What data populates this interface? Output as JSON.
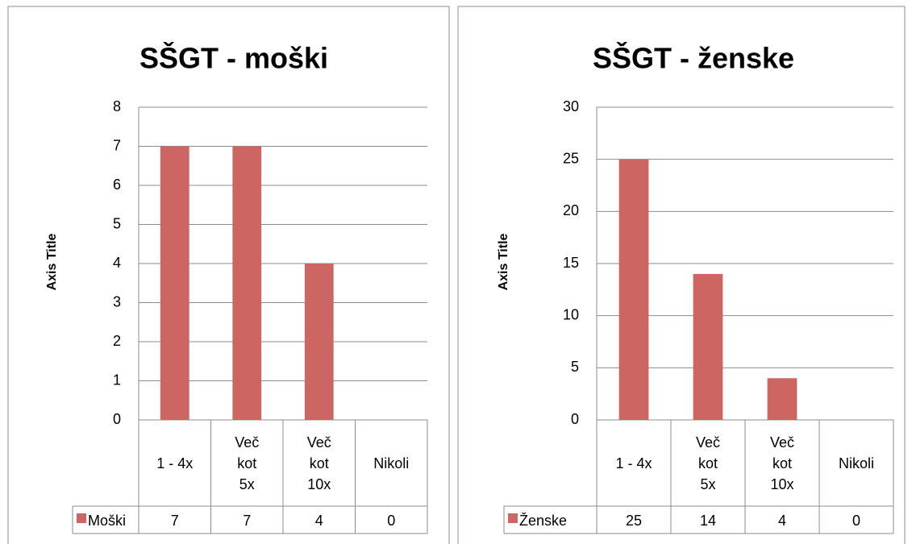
{
  "chart_data": [
    {
      "type": "bar",
      "title": "SŠGT - moški",
      "y_axis_label": "Axis Title",
      "categories": [
        "1 - 4x",
        "Več\nkot\n5x",
        "Več\nkot\n10x",
        "Nikoli"
      ],
      "series": [
        {
          "name": "Moški",
          "color": "#cd6662",
          "values": [
            7,
            7,
            4,
            0
          ]
        }
      ],
      "ylim": [
        0,
        8
      ],
      "yticks": [
        0,
        1,
        2,
        3,
        4,
        5,
        6,
        7,
        8
      ],
      "grid": true,
      "data_table": true
    },
    {
      "type": "bar",
      "title": "SŠGT - ženske",
      "y_axis_label": "Axis Title",
      "categories": [
        "1 - 4x",
        "Več\nkot\n5x",
        "Več\nkot\n10x",
        "Nikoli"
      ],
      "series": [
        {
          "name": "Ženske",
          "color": "#cd6662",
          "values": [
            25,
            14,
            4,
            0
          ]
        }
      ],
      "ylim": [
        0,
        30
      ],
      "yticks": [
        0,
        5,
        10,
        15,
        20,
        25,
        30
      ],
      "grid": true,
      "data_table": true
    }
  ]
}
